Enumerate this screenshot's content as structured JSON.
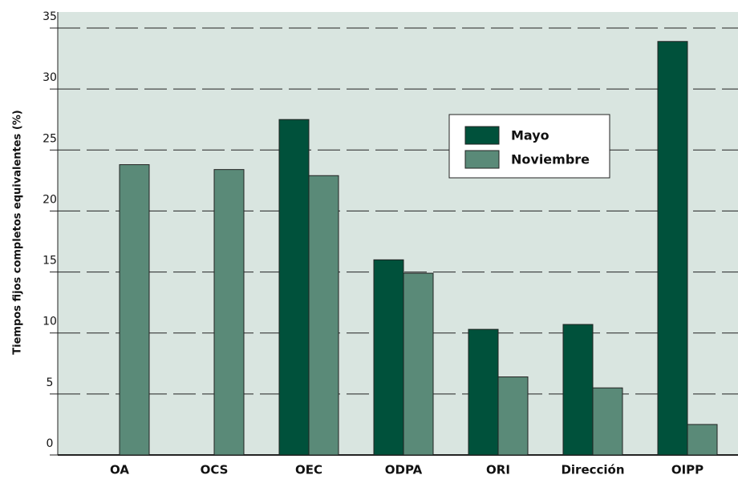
{
  "chart_data": {
    "type": "bar",
    "y_label": "Tiempos fijos completos equivalentes (%)",
    "categories": [
      "OA",
      "OCS",
      "OEC",
      "ODPA",
      "ORI",
      "Dirección",
      "OIPP"
    ],
    "series": [
      {
        "name": "Mayo",
        "color": "#00513b",
        "values": [
          null,
          null,
          27.5,
          16.0,
          10.3,
          10.7,
          33.9
        ]
      },
      {
        "name": "Noviembre",
        "color": "#5a8a78",
        "values": [
          23.8,
          23.4,
          22.9,
          14.9,
          6.4,
          5.5,
          2.5
        ]
      }
    ],
    "ylim": [
      0,
      35
    ],
    "yticks": [
      0,
      5,
      10,
      15,
      20,
      25,
      30,
      35
    ],
    "grid": true,
    "background": "#d9e5e0"
  }
}
